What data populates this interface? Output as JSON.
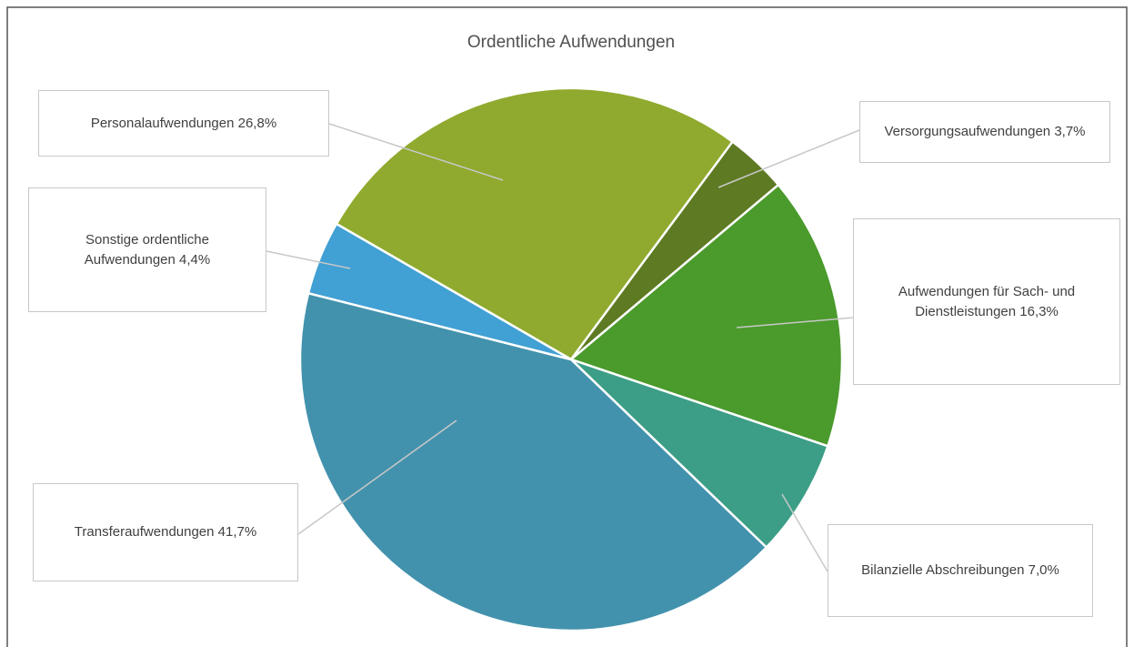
{
  "chart_data": {
    "type": "pie",
    "title": "Ordentliche Aufwendungen",
    "categories": [
      "Personalaufwendungen",
      "Versorgungsaufwendungen",
      "Aufwendungen für Sach- und Dienstleistungen",
      "Bilanzielle Abschreibungen",
      "Transferaufwendungen",
      "Sonstige ordentliche Aufwendungen"
    ],
    "values": [
      26.8,
      3.7,
      16.3,
      7.0,
      41.7,
      4.4
    ],
    "value_labels": [
      "26,8%",
      "3,7%",
      "16,3%",
      "7,0%",
      "41,7%",
      "4,4%"
    ],
    "colors": [
      "#8faa2e",
      "#5e7a22",
      "#4a9a2c",
      "#3c9e86",
      "#4392ad",
      "#41a0d4"
    ]
  }
}
